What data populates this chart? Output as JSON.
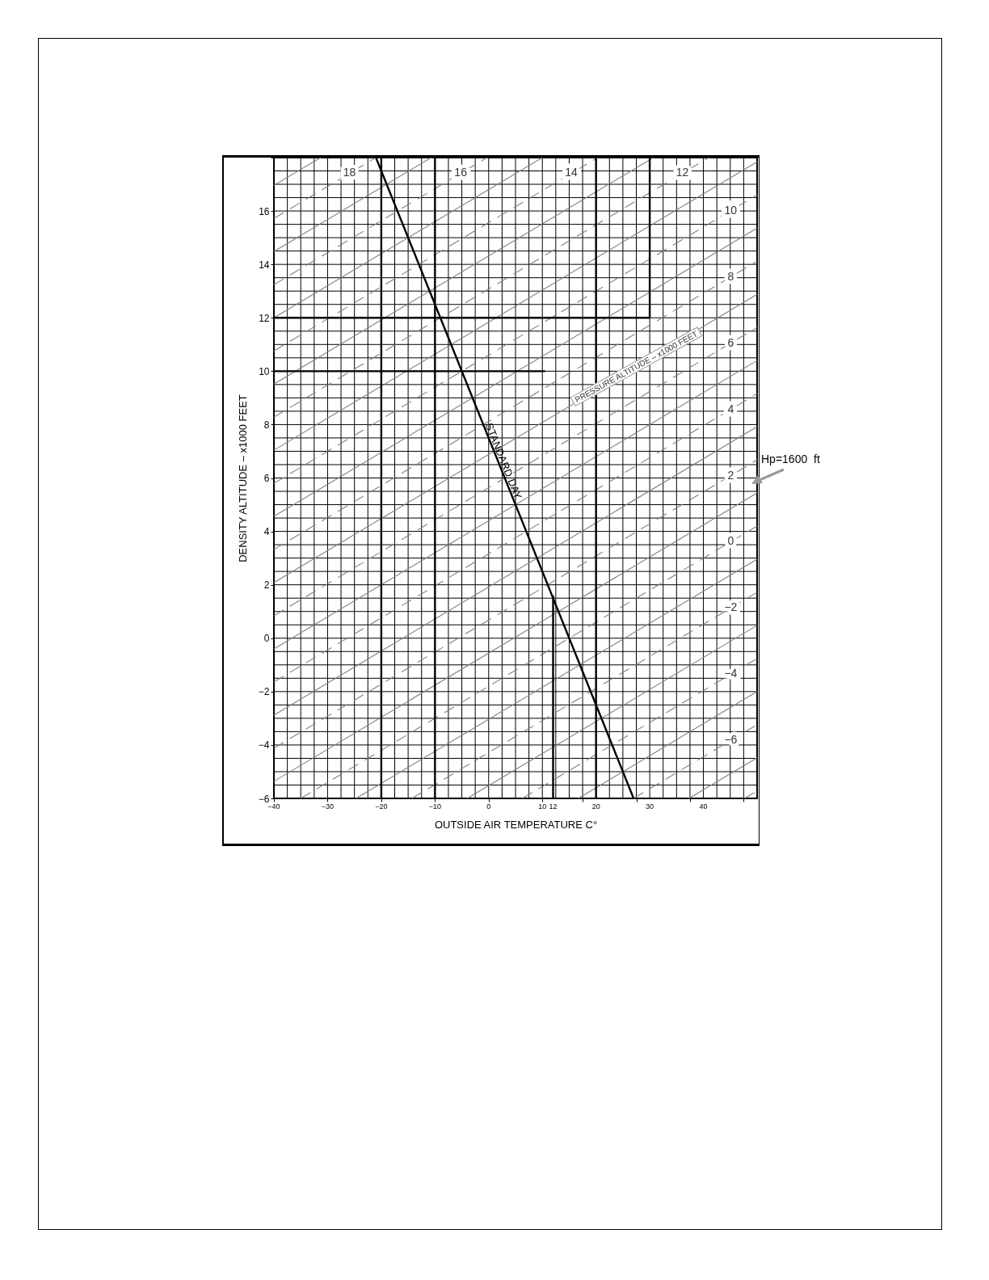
{
  "chart_data": {
    "type": "line",
    "xlabel": "OUTSIDE  AIR  TEMPERATURE    C°",
    "ylabel": "DENSITY  ALTITUDE  –  x1000  FEET",
    "xlim": [
      -40,
      50
    ],
    "ylim": [
      -6,
      18
    ],
    "grid": true,
    "xticks": [
      -40,
      {
        "value": -37.5,
        "label": null
      },
      {
        "value": -35,
        "label": null
      },
      {
        "value": -32.5,
        "label": null
      },
      -30,
      {
        "value": -27.5,
        "label": null
      },
      {
        "value": -25,
        "label": null
      },
      {
        "value": -22.5,
        "label": null
      },
      -20,
      {
        "value": -17.5,
        "label": null
      },
      {
        "value": -15,
        "label": null
      },
      {
        "value": -12.5,
        "label": null
      },
      -10,
      {
        "value": -7.5,
        "label": null
      },
      {
        "value": -5,
        "label": null
      },
      {
        "value": -2.5,
        "label": null
      },
      0,
      {
        "value": 2.5,
        "label": null
      },
      {
        "value": 5,
        "label": null
      },
      {
        "value": 7.5,
        "label": null
      },
      10,
      12,
      {
        "value": 12.5,
        "label": null
      },
      {
        "value": 15,
        "label": null
      },
      {
        "value": 17.5,
        "label": null
      },
      20,
      {
        "value": 22.5,
        "label": null
      },
      {
        "value": 25,
        "label": null
      },
      {
        "value": 27.5,
        "label": null
      },
      30,
      {
        "value": 32.5,
        "label": null
      },
      {
        "value": 35,
        "label": null
      },
      {
        "value": 37.5,
        "label": null
      },
      40,
      {
        "value": 42.5,
        "label": null
      },
      {
        "value": 45,
        "label": null
      },
      {
        "value": 47.5,
        "label": null
      },
      {
        "value": 50,
        "label": null
      }
    ],
    "yticks": [
      -6,
      {
        "value": -5.5,
        "label": null
      },
      {
        "value": -5,
        "label": null
      },
      {
        "value": -4.5,
        "label": null
      },
      -4,
      {
        "value": -3.5,
        "label": null
      },
      {
        "value": -3,
        "label": null
      },
      {
        "value": -2.5,
        "label": null
      },
      -2,
      {
        "value": -1.5,
        "label": null
      },
      {
        "value": -1,
        "label": null
      },
      {
        "value": -0.5,
        "label": null
      },
      0,
      {
        "value": 0.5,
        "label": null
      },
      {
        "value": 1,
        "label": null
      },
      {
        "value": 1.5,
        "label": null
      },
      2,
      {
        "value": 2.5,
        "label": null
      },
      {
        "value": 3,
        "label": null
      },
      {
        "value": 3.5,
        "label": null
      },
      4,
      {
        "value": 4.5,
        "label": null
      },
      {
        "value": 5,
        "label": null
      },
      {
        "value": 5.5,
        "label": null
      },
      6,
      {
        "value": 6.5,
        "label": null
      },
      {
        "value": 7,
        "label": null
      },
      {
        "value": 7.5,
        "label": null
      },
      8,
      {
        "value": 8.5,
        "label": null
      },
      {
        "value": 9,
        "label": null
      },
      {
        "value": 9.5,
        "label": null
      },
      10,
      {
        "value": 10.5,
        "label": null
      },
      {
        "value": 11,
        "label": null
      },
      {
        "value": 11.5,
        "label": null
      },
      12,
      {
        "value": 12.5,
        "label": null
      },
      {
        "value": 13,
        "label": null
      },
      {
        "value": 13.5,
        "label": null
      },
      14,
      {
        "value": 14.5,
        "label": null
      },
      {
        "value": 15,
        "label": null
      },
      {
        "value": 15.5,
        "label": null
      },
      16,
      {
        "value": 16.5,
        "label": null
      },
      {
        "value": 17,
        "label": null
      },
      {
        "value": 17.5,
        "label": null
      },
      {
        "value": 18,
        "label": null
      }
    ],
    "ref_lines": [
      {
        "axis": "x",
        "value": -20,
        "color": "#000000"
      },
      {
        "axis": "x",
        "value": -10,
        "color": "#000000"
      },
      {
        "axis": "x",
        "value": 20,
        "color": "#000000"
      }
    ],
    "series": [
      {
        "color": "#808080",
        "line_style": "dashed",
        "x": [
          47.7,
          50
        ],
        "values": [
          -6,
          -5.72
        ]
      },
      {
        "color": "#808080",
        "line_style": "solid",
        "x": [
          37.3,
          50
        ],
        "values": [
          -6,
          -4.48
        ]
      },
      {
        "name": "−6",
        "color": "#808080",
        "line_style": "dashed",
        "x": [
          27,
          50
        ],
        "values": [
          -6,
          -3.24
        ]
      },
      {
        "color": "#808080",
        "line_style": "solid",
        "x": [
          16.7,
          50
        ],
        "values": [
          -6,
          -2.0
        ]
      },
      {
        "name": "−4",
        "color": "#808080",
        "line_style": "dashed",
        "x": [
          6.3,
          50
        ],
        "values": [
          -6,
          -0.76
        ]
      },
      {
        "color": "#808080",
        "line_style": "solid",
        "x": [
          -4,
          50
        ],
        "values": [
          -6,
          0.48
        ]
      },
      {
        "name": "−2",
        "color": "#808080",
        "line_style": "dashed",
        "x": [
          -14.3,
          50
        ],
        "values": [
          -6,
          1.72
        ]
      },
      {
        "color": "#808080",
        "line_style": "solid",
        "x": [
          -24.7,
          50
        ],
        "values": [
          -6,
          2.96
        ]
      },
      {
        "name": "0",
        "color": "#808080",
        "line_style": "dashed",
        "x": [
          -35,
          50
        ],
        "values": [
          -6,
          4.2
        ]
      },
      {
        "color": "#808080",
        "line_style": "solid",
        "x": [
          -40,
          50
        ],
        "values": [
          -5.36,
          5.44
        ]
      },
      {
        "name": "2",
        "color": "#808080",
        "line_style": "dashed",
        "x": [
          -40,
          50
        ],
        "values": [
          -4.12,
          6.68
        ]
      },
      {
        "color": "#808080",
        "line_style": "solid",
        "x": [
          -40,
          50
        ],
        "values": [
          -2.88,
          7.92
        ]
      },
      {
        "name": "4",
        "color": "#808080",
        "line_style": "dashed",
        "x": [
          -40,
          50
        ],
        "values": [
          -1.64,
          9.16
        ]
      },
      {
        "color": "#808080",
        "line_style": "solid",
        "x": [
          -40,
          50
        ],
        "values": [
          -0.4,
          10.4
        ]
      },
      {
        "name": "6",
        "color": "#808080",
        "line_style": "dashed",
        "x": [
          -40,
          50
        ],
        "values": [
          0.84,
          11.64
        ]
      },
      {
        "color": "#808080",
        "line_style": "solid",
        "x": [
          -40,
          50
        ],
        "values": [
          2.08,
          12.88
        ]
      },
      {
        "name": "8",
        "color": "#808080",
        "line_style": "dashed",
        "x": [
          -40,
          50
        ],
        "values": [
          3.32,
          14.12
        ]
      },
      {
        "color": "#808080",
        "line_style": "solid",
        "x": [
          -40,
          50
        ],
        "values": [
          4.56,
          15.36
        ]
      },
      {
        "name": "10",
        "color": "#808080",
        "line_style": "dashed",
        "x": [
          -40,
          50
        ],
        "values": [
          5.8,
          16.6
        ]
      },
      {
        "color": "#808080",
        "line_style": "solid",
        "x": [
          -40,
          50
        ],
        "values": [
          7.04,
          17.84
        ]
      },
      {
        "name": "12",
        "color": "#808080",
        "line_style": "dashed",
        "x": [
          -40,
          41
        ],
        "values": [
          8.28,
          18
        ]
      },
      {
        "color": "#808080",
        "line_style": "solid",
        "x": [
          -40,
          30.7
        ],
        "values": [
          9.52,
          18
        ]
      },
      {
        "name": "14",
        "color": "#808080",
        "line_style": "dashed",
        "x": [
          -40,
          20.3
        ],
        "values": [
          10.76,
          18
        ]
      },
      {
        "color": "#808080",
        "line_style": "solid",
        "x": [
          -40,
          10
        ],
        "values": [
          12,
          18
        ]
      },
      {
        "name": "16",
        "color": "#808080",
        "line_style": "dashed",
        "x": [
          -40,
          -0.3
        ],
        "values": [
          13.24,
          18
        ]
      },
      {
        "color": "#808080",
        "line_style": "solid",
        "x": [
          -40,
          -10.7
        ],
        "values": [
          14.48,
          18
        ]
      },
      {
        "name": "18",
        "color": "#808080",
        "line_style": "dashed",
        "x": [
          -40,
          -21
        ],
        "values": [
          15.72,
          18
        ]
      },
      {
        "color": "#808080",
        "line_style": "solid",
        "x": [
          -40,
          -31.3
        ],
        "values": [
          16.96,
          18
        ]
      },
      {
        "color": "#000000",
        "x": [
          12,
          12
        ],
        "values": [
          -6,
          1.6
        ]
      },
      {
        "color": "#000000",
        "x": [
          -40,
          30
        ],
        "values": [
          12,
          12
        ]
      },
      {
        "color": "#000000",
        "x": [
          30,
          30
        ],
        "values": [
          12,
          18
        ]
      },
      {
        "color": "#000000",
        "x": [
          -40,
          10.5
        ],
        "values": [
          10,
          10
        ]
      },
      {
        "name": "STANDARD DAY",
        "color": "#000000",
        "x": [
          -21,
          27
        ],
        "values": [
          18,
          -6
        ]
      }
    ],
    "annotations": [
      "PRESSURE ALTITUDE – x1000 FEET",
      "Hp=1600  ft"
    ]
  }
}
